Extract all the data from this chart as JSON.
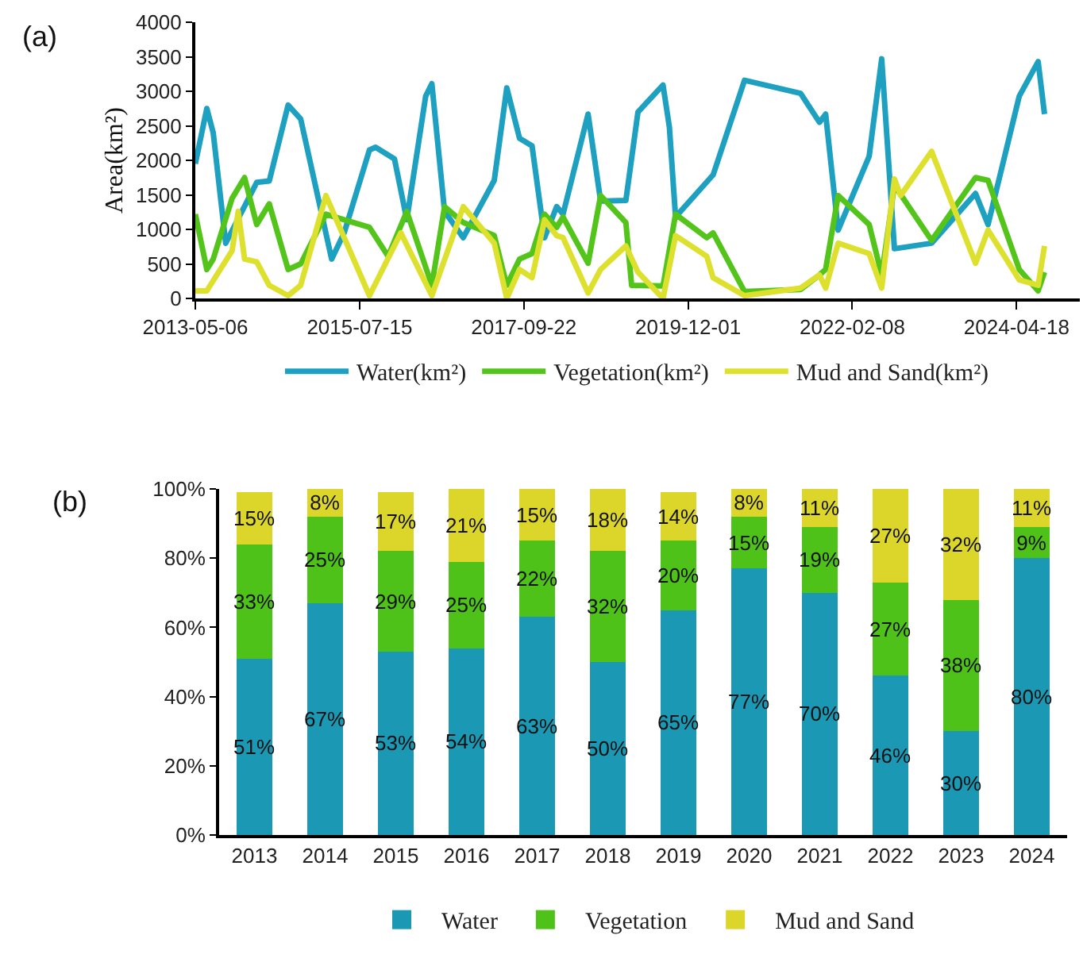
{
  "chart_data": [
    {
      "type": "line",
      "annotations": [
        "(a)"
      ],
      "ylabel": "Area(km²)",
      "xlim": [
        "2013-05-06",
        "2025-02-20"
      ],
      "xticks": [
        "2013-05-06",
        "2015-07-15",
        "2017-09-22",
        "2019-12-01",
        "2022-02-08",
        "2024-04-18"
      ],
      "ylim": [
        0,
        4000
      ],
      "yticks": [
        0,
        500,
        1000,
        1500,
        2000,
        2500,
        3000,
        3500,
        4000
      ],
      "grid": false,
      "legend": "bottom",
      "marker": "none",
      "line_style": "solid",
      "series": [
        {
          "name": "Water(km²)",
          "color": "#1ea0c0",
          "x": [
            "2013-05-06",
            "2013-07",
            "2013-08",
            "2013-10",
            "2014-03",
            "2014-05",
            "2014-08",
            "2014-10",
            "2015-03",
            "2015-05",
            "2015-09",
            "2015-10",
            "2016-01",
            "2016-03",
            "2016-06",
            "2016-07",
            "2016-09",
            "2016-12",
            "2017-05",
            "2017-07",
            "2017-09",
            "2017-11",
            "2018-01",
            "2018-03",
            "2018-04",
            "2018-08",
            "2018-10",
            "2019-02",
            "2019-04",
            "2019-08",
            "2019-09",
            "2019-10",
            "2020-04",
            "2020-09",
            "2021-06",
            "2021-09",
            "2021-10",
            "2021-12",
            "2022-05",
            "2022-07",
            "2022-09",
            "2023-03",
            "2023-10",
            "2023-12",
            "2024-05",
            "2024-08",
            "2024-09"
          ],
          "values": [
            1950,
            2750,
            2400,
            800,
            1680,
            1700,
            2800,
            2600,
            570,
            950,
            2150,
            2190,
            2020,
            1140,
            2930,
            3110,
            1260,
            880,
            1710,
            3050,
            2320,
            2210,
            880,
            1330,
            1220,
            2670,
            1410,
            1420,
            2700,
            3090,
            2480,
            1180,
            1790,
            3160,
            2970,
            2550,
            2670,
            990,
            2060,
            3470,
            720,
            800,
            1520,
            1070,
            2930,
            3430,
            2670
          ]
        },
        {
          "name": "Vegetation(km²)",
          "color": "#52c41a",
          "x": [
            "2013-05-06",
            "2013-07",
            "2013-08",
            "2013-11",
            "2014-01",
            "2014-03",
            "2014-05",
            "2014-08",
            "2014-10",
            "2015-02",
            "2015-05",
            "2015-09",
            "2015-12",
            "2016-03",
            "2016-07",
            "2016-09",
            "2016-12",
            "2017-05",
            "2017-07",
            "2017-09",
            "2017-11",
            "2018-01",
            "2018-03",
            "2018-04",
            "2018-08",
            "2018-10",
            "2019-02",
            "2019-03",
            "2019-08",
            "2019-10",
            "2020-03",
            "2020-04",
            "2020-09",
            "2021-06",
            "2021-09",
            "2021-10",
            "2021-12",
            "2022-05",
            "2022-07",
            "2022-09",
            "2023-03",
            "2023-10",
            "2023-12",
            "2024-05",
            "2024-08",
            "2024-09"
          ],
          "values": [
            1220,
            420,
            570,
            1450,
            1750,
            1070,
            1370,
            420,
            500,
            1220,
            1140,
            1030,
            610,
            1260,
            190,
            1330,
            1100,
            910,
            190,
            570,
            650,
            1220,
            1030,
            1180,
            510,
            1490,
            1100,
            190,
            180,
            1220,
            880,
            950,
            100,
            130,
            340,
            420,
            1490,
            1070,
            340,
            1640,
            840,
            1750,
            1710,
            420,
            110,
            380
          ]
        },
        {
          "name": "Mud and Sand(km²)",
          "color": "#dde02c",
          "x": [
            "2013-05-06",
            "2013-07",
            "2013-11",
            "2013-12",
            "2014-01",
            "2014-03",
            "2014-05",
            "2014-08",
            "2014-10",
            "2015-02",
            "2015-09",
            "2016-02",
            "2016-07",
            "2016-12",
            "2017-05",
            "2017-07",
            "2017-09",
            "2017-11",
            "2018-01",
            "2018-03",
            "2018-04",
            "2018-08",
            "2018-10",
            "2019-02",
            "2019-04",
            "2019-08",
            "2019-10",
            "2020-03",
            "2020-04",
            "2020-09",
            "2021-06",
            "2021-09",
            "2021-10",
            "2021-12",
            "2022-05",
            "2022-07",
            "2022-09",
            "2022-10",
            "2023-03",
            "2023-10",
            "2023-12",
            "2024-05",
            "2024-08",
            "2024-09"
          ],
          "values": [
            110,
            110,
            690,
            1260,
            570,
            530,
            190,
            40,
            190,
            1490,
            40,
            950,
            40,
            1330,
            800,
            0,
            420,
            300,
            1140,
            910,
            880,
            80,
            420,
            760,
            380,
            0,
            910,
            610,
            300,
            40,
            150,
            340,
            150,
            800,
            650,
            150,
            1730,
            1490,
            2130,
            510,
            990,
            270,
            190,
            760
          ]
        }
      ]
    },
    {
      "type": "bar",
      "stacked": true,
      "annotations": [
        "(b)"
      ],
      "categories": [
        "2013",
        "2014",
        "2015",
        "2016",
        "2017",
        "2018",
        "2019",
        "2020",
        "2021",
        "2022",
        "2023",
        "2024"
      ],
      "ylim": [
        0,
        100
      ],
      "yticks": [
        {
          "value": 0,
          "label": "0%"
        },
        {
          "value": 20,
          "label": "20%"
        },
        {
          "value": 40,
          "label": "40%"
        },
        {
          "value": 60,
          "label": "60%"
        },
        {
          "value": 80,
          "label": "80%"
        },
        {
          "value": 100,
          "label": "100%"
        }
      ],
      "grid": false,
      "legend": "bottom",
      "series": [
        {
          "name": "Water",
          "color": "#1a98b4",
          "values": [
            51,
            67,
            53,
            54,
            63,
            50,
            65,
            77,
            70,
            46,
            30,
            80
          ],
          "value_labels": [
            "51%",
            "67%",
            "53%",
            "54%",
            "63%",
            "50%",
            "65%",
            "77%",
            "70%",
            "46%",
            "30%",
            "80%"
          ]
        },
        {
          "name": "Vegetation",
          "color": "#4fc21a",
          "values": [
            33,
            25,
            29,
            25,
            22,
            32,
            20,
            15,
            19,
            27,
            38,
            9
          ],
          "value_labels": [
            "33%",
            "25%",
            "29%",
            "25%",
            "22%",
            "32%",
            "20%",
            "15%",
            "19%",
            "27%",
            "38%",
            "9%"
          ]
        },
        {
          "name": "Mud and Sand",
          "color": "#dcd62a",
          "values": [
            15,
            8,
            17,
            21,
            15,
            18,
            14,
            8,
            11,
            27,
            32,
            11
          ],
          "value_labels": [
            "15%",
            "8%",
            "17%",
            "21%",
            "15%",
            "18%",
            "14%",
            "8%",
            "11%",
            "27%",
            "32%",
            "11%"
          ]
        }
      ]
    }
  ]
}
